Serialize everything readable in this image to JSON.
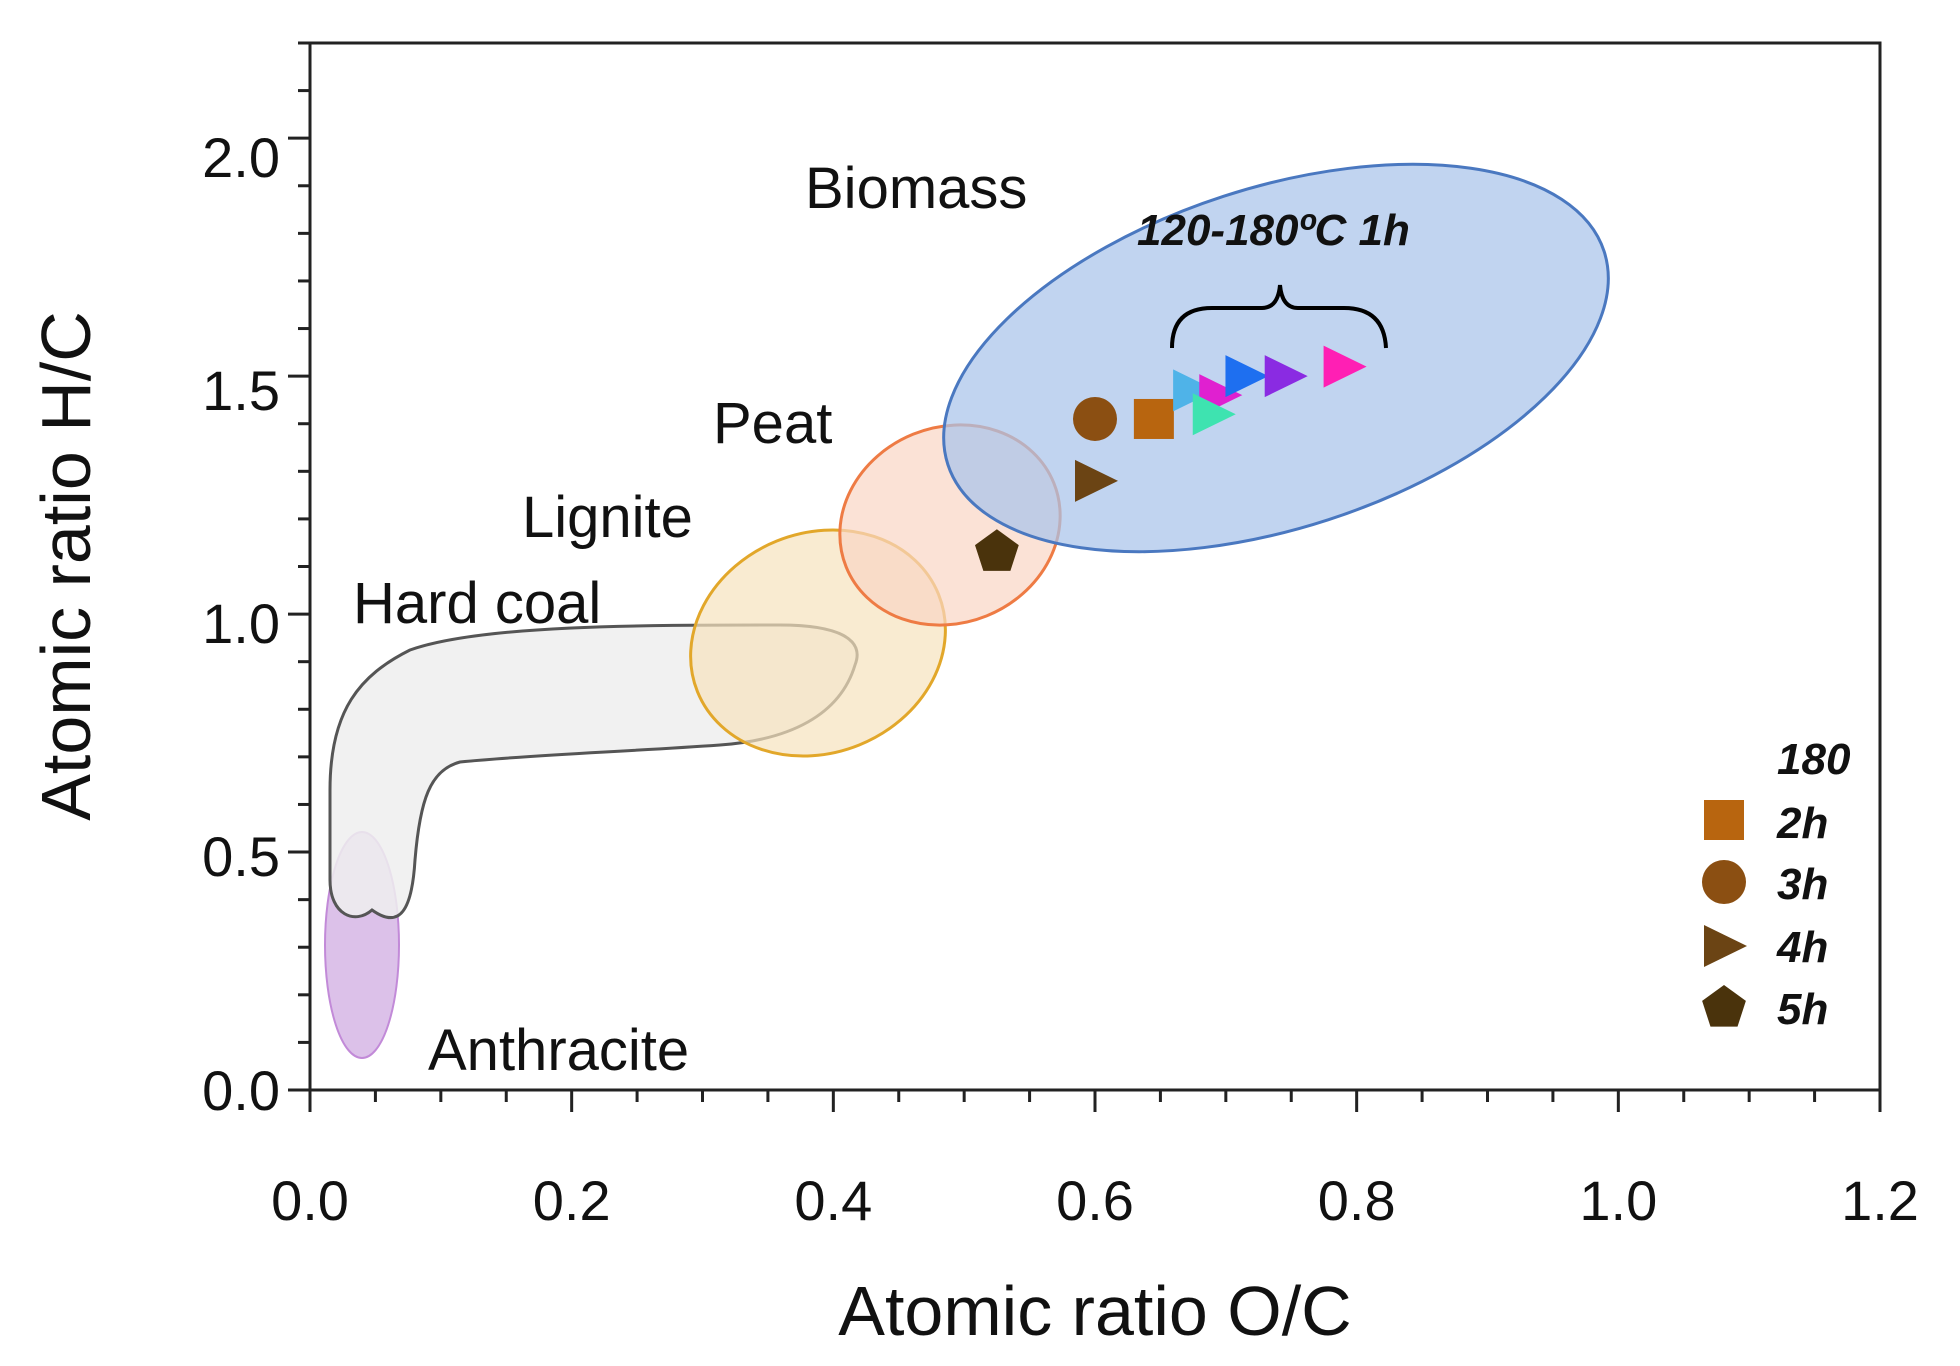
{
  "chart_data": {
    "type": "scatter",
    "title": "",
    "xlabel": "Atomic ratio O/C",
    "ylabel": "Atomic ratio H/C",
    "xlim": [
      0.0,
      1.2
    ],
    "ylim": [
      0.0,
      2.2
    ],
    "xticks": [
      "0.0",
      "0.2",
      "0.4",
      "0.6",
      "0.8",
      "1.0",
      "1.2"
    ],
    "yticks": [
      "0.0",
      "0.5",
      "1.0",
      "1.5",
      "2.0"
    ],
    "regions": [
      {
        "name": "Anthracite",
        "color": "#c9a0dc"
      },
      {
        "name": "Hard coal",
        "color": "#e6e6e6"
      },
      {
        "name": "Lignite",
        "color": "#f6ddb0"
      },
      {
        "name": "Peat",
        "color": "#f9d2bf"
      },
      {
        "name": "Biomass",
        "color": "#a9c3ea"
      }
    ],
    "annotation": "120-180ºC 1h",
    "series_1h": [
      {
        "x": 0.675,
        "y": 1.47,
        "color": "#4fb3e8",
        "shape": "triangle-right"
      },
      {
        "x": 0.695,
        "y": 1.46,
        "color": "#e020d0",
        "shape": "triangle-right"
      },
      {
        "x": 0.69,
        "y": 1.42,
        "color": "#3ee3b0",
        "shape": "triangle-right"
      },
      {
        "x": 0.715,
        "y": 1.5,
        "color": "#1e6ff0",
        "shape": "triangle-right"
      },
      {
        "x": 0.745,
        "y": 1.5,
        "color": "#8a2be2",
        "shape": "triangle-right"
      },
      {
        "x": 0.79,
        "y": 1.52,
        "color": "#ff1fb4",
        "shape": "triangle-right"
      }
    ],
    "series_180": [
      {
        "label": "2h",
        "x": 0.645,
        "y": 1.41,
        "color": "#b8650f",
        "shape": "square"
      },
      {
        "label": "3h",
        "x": 0.6,
        "y": 1.41,
        "color": "#8b4f12",
        "shape": "circle"
      },
      {
        "label": "4h",
        "x": 0.6,
        "y": 1.28,
        "color": "#6b4414",
        "shape": "triangle-right"
      },
      {
        "label": "5h",
        "x": 0.525,
        "y": 1.13,
        "color": "#4a330c",
        "shape": "pentagon"
      }
    ],
    "legend": {
      "title": "180",
      "entries": [
        "2h",
        "3h",
        "4h",
        "5h"
      ],
      "position": "bottom-right"
    }
  }
}
